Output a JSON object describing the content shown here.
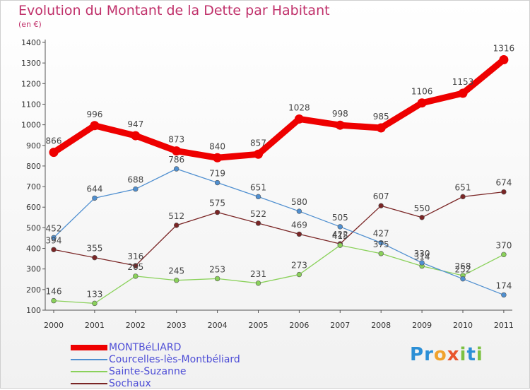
{
  "title": "Evolution du Montant de la Dette par Habitant",
  "subtitle": "(en €)",
  "logo": "Proxiti",
  "chart_data": {
    "type": "line",
    "x": [
      "2000",
      "2001",
      "2002",
      "2003",
      "2004",
      "2005",
      "2006",
      "2007",
      "2008",
      "2009",
      "2010",
      "2011"
    ],
    "ylim": [
      100,
      1400
    ],
    "yticks": [
      100,
      200,
      300,
      400,
      500,
      600,
      700,
      800,
      900,
      1000,
      1100,
      1200,
      1300,
      1400
    ],
    "grid": false,
    "legend_position": "bottom-left",
    "series": [
      {
        "name": "MONTBéLIARD",
        "color": "#ee0000",
        "values": [
          866,
          996,
          947,
          873,
          840,
          857,
          1028,
          998,
          985,
          1106,
          1153,
          1316
        ]
      },
      {
        "name": "Courcelles-lès-Montbéliard",
        "color": "#4f8fd0",
        "values": [
          452,
          644,
          688,
          786,
          719,
          651,
          580,
          505,
          427,
          330,
          252,
          174
        ]
      },
      {
        "name": "Sainte-Suzanne",
        "color": "#8ad15a",
        "values": [
          146,
          133,
          265,
          245,
          253,
          231,
          273,
          415,
          375,
          314,
          268,
          370
        ]
      },
      {
        "name": "Sochaux",
        "color": "#7a2525",
        "values": [
          394,
          355,
          316,
          512,
          575,
          522,
          469,
          422,
          607,
          550,
          651,
          674
        ]
      }
    ]
  }
}
